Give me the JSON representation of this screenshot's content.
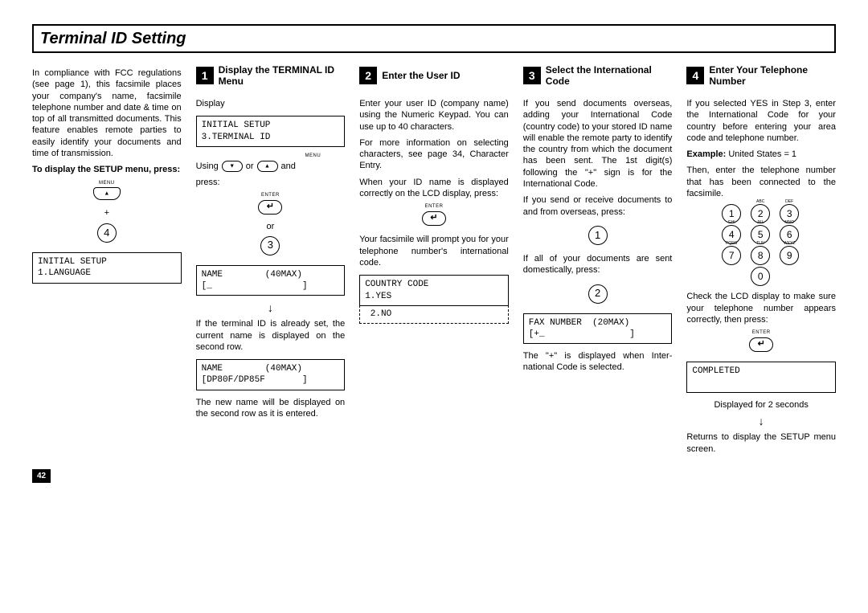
{
  "title": "Terminal ID Setting",
  "page_number": "42",
  "intro": {
    "p1": "In compliance with FCC regula­tions (see page 1), this facsimile places your company's name, facsimile telephone number and date & time on top of all trans­mitted documents. This feature enables remote parties to easily identify your documents and time of transmission.",
    "sub_bold": "To display the SETUP menu, press:",
    "menu_label": "MENU",
    "plus": "+",
    "num": "4",
    "lcd": "INITIAL SETUP\n1.LANGUAGE"
  },
  "step1": {
    "num": "1",
    "title": "Display the TERMINAL ID Menu",
    "display_label": "Display",
    "lcd_top": "INITIAL SETUP\n3.TERMINAL ID",
    "menu_label": "MENU",
    "using": "Using",
    "or": "or",
    "and": "and",
    "press": "press:",
    "enter_label": "ENTER",
    "or2": "or",
    "num_btn": "3",
    "lcd_name": "NAME        (40MAX)\n[_                 ]",
    "p_if_set": "If the terminal ID is already set, the current name is displayed on the second row.",
    "lcd_name2": "NAME        (40MAX)\n[DP80F/DP85F       ]",
    "p_newname": "The new name will be displayed on the second row as it is en­tered."
  },
  "step2": {
    "num": "2",
    "title": "Enter the User ID",
    "p1": "Enter your user ID (company name) using the Numeric Key­pad. You can use up to 40 char­acters.",
    "p2": "For more information on select­ing characters, see page 34, Character Entry.",
    "p3": "When your ID name is displayed correctly on the LCD display, press:",
    "enter_label": "ENTER",
    "p4": "Your facsimile will prompt you for your telephone number's in­ternational code.",
    "lcd": "COUNTRY CODE\n1.YES",
    "lcd_dash": " 2.NO"
  },
  "step3": {
    "num": "3",
    "title": "Select the International Code",
    "p1": "If you send documents over­seas, adding your International Code (country code) to your stored ID name will enable the remote party to identify the country from which the docu­ment has been sent. The 1st digit(s) following the \"+\" sign is for the International Code.",
    "p2": "If you send or receive docu­ments to and from overseas, press:",
    "btn1": "1",
    "p3": "If all of your documents are sent domestically, press:",
    "btn2": "2",
    "lcd": "FAX NUMBER  (20MAX)\n[+_                ]",
    "p4": "The \"+\" is displayed when Inter­national Code is selected."
  },
  "step4": {
    "num": "4",
    "title": "Enter Your Telephone Number",
    "p1": "If you selected YES in Step 3, enter the International Code for your country before entering your area code and telephone number.",
    "example_b": "Example:",
    "example_t": " United States = 1",
    "p2": "Then, enter the telephone num­ber that has been connected to the facsimile.",
    "keypad_labels": [
      "",
      "ABC",
      "DEF",
      "GHI",
      "JKL",
      "MNO",
      "PQRS",
      "TUV",
      "WXYZ"
    ],
    "keypad_nums": [
      "1",
      "2",
      "3",
      "4",
      "5",
      "6",
      "7",
      "8",
      "9",
      "0"
    ],
    "p3": "Check the LCD display to make sure your telephone number appears correctly, then press:",
    "enter_label": "ENTER",
    "lcd": "COMPLETED\n ",
    "disp2": "Displayed for 2 seconds",
    "p4": "Returns to display the SETUP menu screen."
  }
}
